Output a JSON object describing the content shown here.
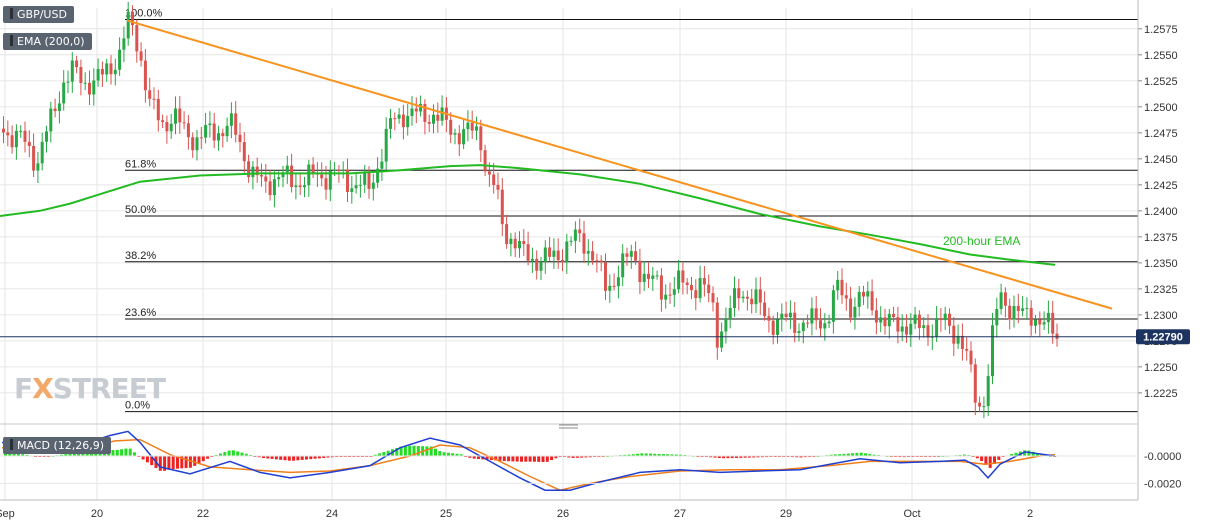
{
  "header": {
    "symbol_label": "GBP/USD",
    "ema_label": "EMA (200,0)",
    "macd_label": "MACD (12,26,9)"
  },
  "watermark": {
    "part1": "F",
    "part2": "X",
    "part3": "STREET"
  },
  "colors": {
    "bull": "#27a745",
    "bear": "#d9534f",
    "ema": "#22bb22",
    "trendline": "#f7931e",
    "grid": "#e6e6e6",
    "macd_line": "#1f3fd1",
    "signal_line": "#f07f1a",
    "hist_pos": "#22dd22",
    "hist_neg": "#ee2222",
    "price_tag": "#1d3461"
  },
  "chart_data": {
    "type": "candlestick",
    "title": "",
    "xlabel": "",
    "ylabel": "",
    "price_range": [
      1.2197,
      1.2595
    ],
    "x_ticks": [
      "Sep",
      "20",
      "22",
      "24",
      "25",
      "26",
      "27",
      "29",
      "Oct",
      "2"
    ],
    "y_ticks": [
      "1.2575",
      "1.2550",
      "1.2525",
      "1.2500",
      "1.2475",
      "1.2450",
      "1.2425",
      "1.2400",
      "1.2375",
      "1.2350",
      "1.2325",
      "1.2300",
      "1.2275",
      "1.2250",
      "1.2225"
    ],
    "current_price": {
      "label": "1.22790",
      "value": 1.2279
    },
    "fibonacci": [
      {
        "label": "100.0%",
        "value": 1.2584
      },
      {
        "label": "61.8%",
        "value": 1.2439
      },
      {
        "label": "50.0%",
        "value": 1.2395
      },
      {
        "label": "38.2%",
        "value": 1.2351
      },
      {
        "label": "23.6%",
        "value": 1.2296
      },
      {
        "label": "0.0%",
        "value": 1.2207
      }
    ],
    "ema_label": "200-hour EMA",
    "ema_path": [
      [
        0,
        1.2395
      ],
      [
        40,
        1.24
      ],
      [
        70,
        1.2407
      ],
      [
        100,
        1.2416
      ],
      [
        140,
        1.2428
      ],
      [
        200,
        1.2434
      ],
      [
        260,
        1.2436
      ],
      [
        300,
        1.2436
      ],
      [
        350,
        1.2436
      ],
      [
        400,
        1.2439
      ],
      [
        450,
        1.2443
      ],
      [
        480,
        1.2444
      ],
      [
        520,
        1.2441
      ],
      [
        580,
        1.2435
      ],
      [
        640,
        1.2426
      ],
      [
        700,
        1.2412
      ],
      [
        760,
        1.2397
      ],
      [
        820,
        1.2385
      ],
      [
        870,
        1.2377
      ],
      [
        920,
        1.2368
      ],
      [
        970,
        1.2358
      ],
      [
        1010,
        1.2353
      ],
      [
        1055,
        1.2348
      ]
    ],
    "trendline": [
      [
        127,
        1.2583
      ],
      [
        1112,
        1.2306
      ]
    ],
    "candle_path": [
      [
        2,
        1.2479
      ],
      [
        20,
        1.2468
      ],
      [
        35,
        1.2448
      ],
      [
        50,
        1.2487
      ],
      [
        62,
        1.2526
      ],
      [
        70,
        1.2534
      ],
      [
        82,
        1.2524
      ],
      [
        100,
        1.2527
      ],
      [
        118,
        1.2552
      ],
      [
        128,
        1.2583
      ],
      [
        138,
        1.2556
      ],
      [
        148,
        1.2502
      ],
      [
        160,
        1.2484
      ],
      [
        172,
        1.2492
      ],
      [
        182,
        1.2476
      ],
      [
        195,
        1.247
      ],
      [
        210,
        1.2475
      ],
      [
        228,
        1.2483
      ],
      [
        240,
        1.2462
      ],
      [
        250,
        1.2437
      ],
      [
        262,
        1.2423
      ],
      [
        275,
        1.2435
      ],
      [
        290,
        1.2428
      ],
      [
        310,
        1.2432
      ],
      [
        330,
        1.2436
      ],
      [
        350,
        1.2428
      ],
      [
        368,
        1.2421
      ],
      [
        378,
        1.2451
      ],
      [
        390,
        1.2484
      ],
      [
        402,
        1.2495
      ],
      [
        418,
        1.2491
      ],
      [
        432,
        1.2494
      ],
      [
        448,
        1.2479
      ],
      [
        465,
        1.2474
      ],
      [
        478,
        1.2477
      ],
      [
        486,
        1.2433
      ],
      [
        494,
        1.242
      ],
      [
        502,
        1.2382
      ],
      [
        512,
        1.2373
      ],
      [
        520,
        1.2358
      ],
      [
        535,
        1.2354
      ],
      [
        550,
        1.2353
      ],
      [
        568,
        1.237
      ],
      [
        580,
        1.2373
      ],
      [
        592,
        1.2358
      ],
      [
        605,
        1.2322
      ],
      [
        618,
        1.2347
      ],
      [
        632,
        1.2356
      ],
      [
        645,
        1.2336
      ],
      [
        660,
        1.2323
      ],
      [
        680,
        1.2329
      ],
      [
        700,
        1.2329
      ],
      [
        712,
        1.2306
      ],
      [
        716,
        1.2281
      ],
      [
        728,
        1.2302
      ],
      [
        740,
        1.2325
      ],
      [
        752,
        1.2316
      ],
      [
        765,
        1.2296
      ],
      [
        790,
        1.2293
      ],
      [
        812,
        1.2292
      ],
      [
        825,
        1.2296
      ],
      [
        835,
        1.2325
      ],
      [
        848,
        1.231
      ],
      [
        860,
        1.2316
      ],
      [
        872,
        1.2308
      ],
      [
        886,
        1.2289
      ],
      [
        905,
        1.2292
      ],
      [
        920,
        1.2285
      ],
      [
        940,
        1.2293
      ],
      [
        958,
        1.2281
      ],
      [
        966,
        1.2256
      ],
      [
        976,
        1.221
      ],
      [
        984,
        1.2225
      ],
      [
        990,
        1.2272
      ],
      [
        998,
        1.2318
      ],
      [
        1010,
        1.2308
      ],
      [
        1022,
        1.2297
      ],
      [
        1032,
        1.2302
      ],
      [
        1044,
        1.229
      ],
      [
        1055,
        1.2279
      ]
    ],
    "macd": {
      "y_ticks": [
        "-0.0000",
        "-0.0020"
      ],
      "range": [
        -0.003,
        0.0019
      ],
      "macd_path": [
        [
          2,
          0.001
        ],
        [
          40,
          0.0002
        ],
        [
          80,
          0.0008
        ],
        [
          110,
          0.0015
        ],
        [
          128,
          0.0018
        ],
        [
          140,
          0.001
        ],
        [
          160,
          -0.0008
        ],
        [
          190,
          -0.0013
        ],
        [
          230,
          -0.0004
        ],
        [
          260,
          -0.0012
        ],
        [
          290,
          -0.0016
        ],
        [
          330,
          -0.0012
        ],
        [
          370,
          -0.0007
        ],
        [
          400,
          0.0006
        ],
        [
          430,
          0.0013
        ],
        [
          460,
          0.0008
        ],
        [
          490,
          -0.0004
        ],
        [
          520,
          -0.0016
        ],
        [
          545,
          -0.0025
        ],
        [
          570,
          -0.0025
        ],
        [
          600,
          -0.0019
        ],
        [
          640,
          -0.0012
        ],
        [
          680,
          -0.001
        ],
        [
          720,
          -0.0012
        ],
        [
          760,
          -0.0011
        ],
        [
          800,
          -0.001
        ],
        [
          830,
          -0.0006
        ],
        [
          860,
          -0.0002
        ],
        [
          900,
          -0.0005
        ],
        [
          940,
          -0.0004
        ],
        [
          965,
          -0.0003
        ],
        [
          978,
          -0.0008
        ],
        [
          988,
          -0.0016
        ],
        [
          1000,
          -0.0006
        ],
        [
          1025,
          0.0003
        ],
        [
          1055,
          0.0
        ]
      ],
      "signal_path": [
        [
          2,
          0.0006
        ],
        [
          40,
          0.0003
        ],
        [
          80,
          0.0005
        ],
        [
          115,
          0.0011
        ],
        [
          140,
          0.0012
        ],
        [
          170,
          0.0001
        ],
        [
          210,
          -0.0008
        ],
        [
          250,
          -0.001
        ],
        [
          290,
          -0.0012
        ],
        [
          330,
          -0.0011
        ],
        [
          370,
          -0.0007
        ],
        [
          410,
          0.0
        ],
        [
          440,
          0.0008
        ],
        [
          470,
          0.0006
        ],
        [
          500,
          -0.0004
        ],
        [
          530,
          -0.0015
        ],
        [
          560,
          -0.0025
        ],
        [
          590,
          -0.002
        ],
        [
          630,
          -0.0015
        ],
        [
          680,
          -0.0011
        ],
        [
          730,
          -0.001
        ],
        [
          780,
          -0.001
        ],
        [
          830,
          -0.0007
        ],
        [
          870,
          -0.0004
        ],
        [
          920,
          -0.0004
        ],
        [
          960,
          -0.0004
        ],
        [
          985,
          -0.0006
        ],
        [
          1010,
          -0.0004
        ],
        [
          1040,
          0.0
        ],
        [
          1055,
          0.0001
        ]
      ]
    }
  }
}
